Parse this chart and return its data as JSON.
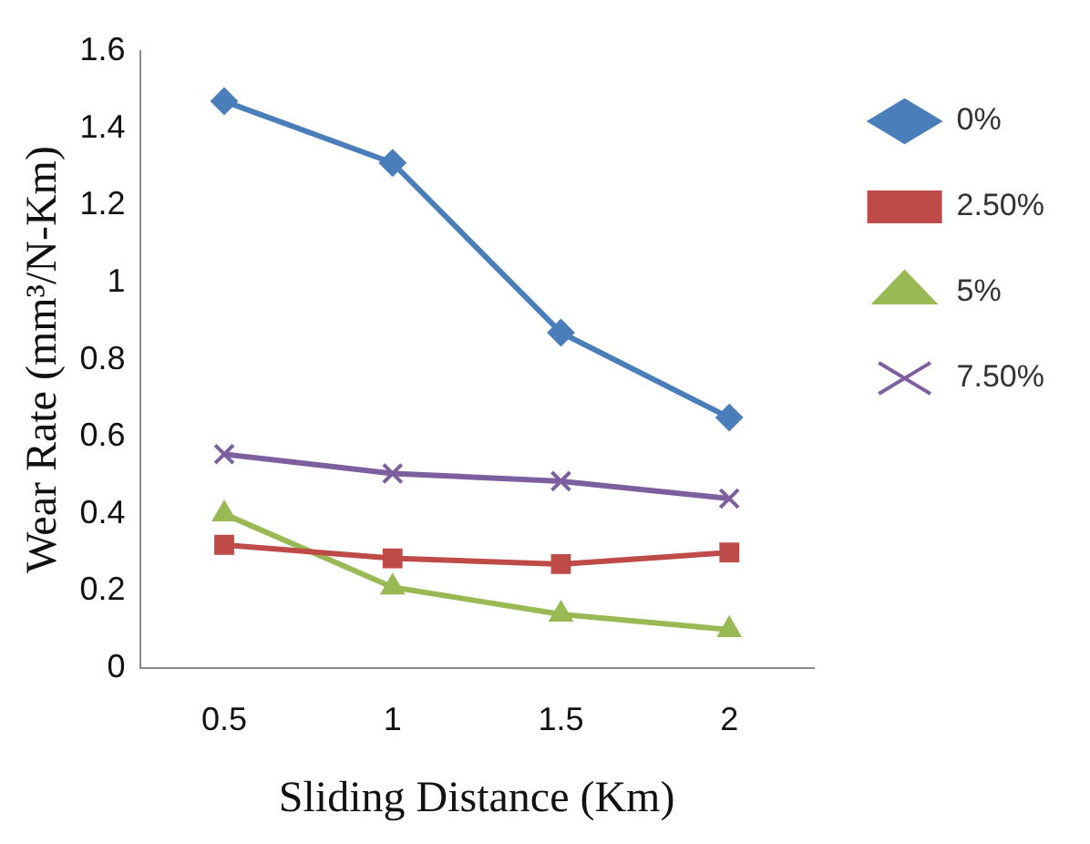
{
  "chart_data": {
    "type": "line",
    "xlabel": "Sliding Distance (Km)",
    "ylabel": "Wear Rate (mm³/N-Km)",
    "categories": [
      "0.5",
      "1",
      "1.5",
      "2"
    ],
    "series": [
      {
        "name": "0%",
        "color": "#4a7ebb",
        "marker": "diamond",
        "values": [
          1.47,
          1.31,
          0.87,
          0.65
        ]
      },
      {
        "name": "2.50%",
        "color": "#be4b48",
        "marker": "square",
        "values": [
          0.32,
          0.285,
          0.27,
          0.3
        ]
      },
      {
        "name": "5%",
        "color": "#98b954",
        "marker": "triangle",
        "values": [
          0.4,
          0.21,
          0.14,
          0.1
        ]
      },
      {
        "name": "7.50%",
        "color": "#7d5fa0",
        "marker": "cross",
        "values": [
          0.555,
          0.505,
          0.485,
          0.44
        ]
      }
    ],
    "ylim": [
      0,
      1.6
    ],
    "yticks": [
      0,
      0.2,
      0.4,
      0.6,
      0.8,
      1,
      1.2,
      1.4,
      1.6
    ],
    "grid": false,
    "legend": "right",
    "line_style": "solid"
  }
}
